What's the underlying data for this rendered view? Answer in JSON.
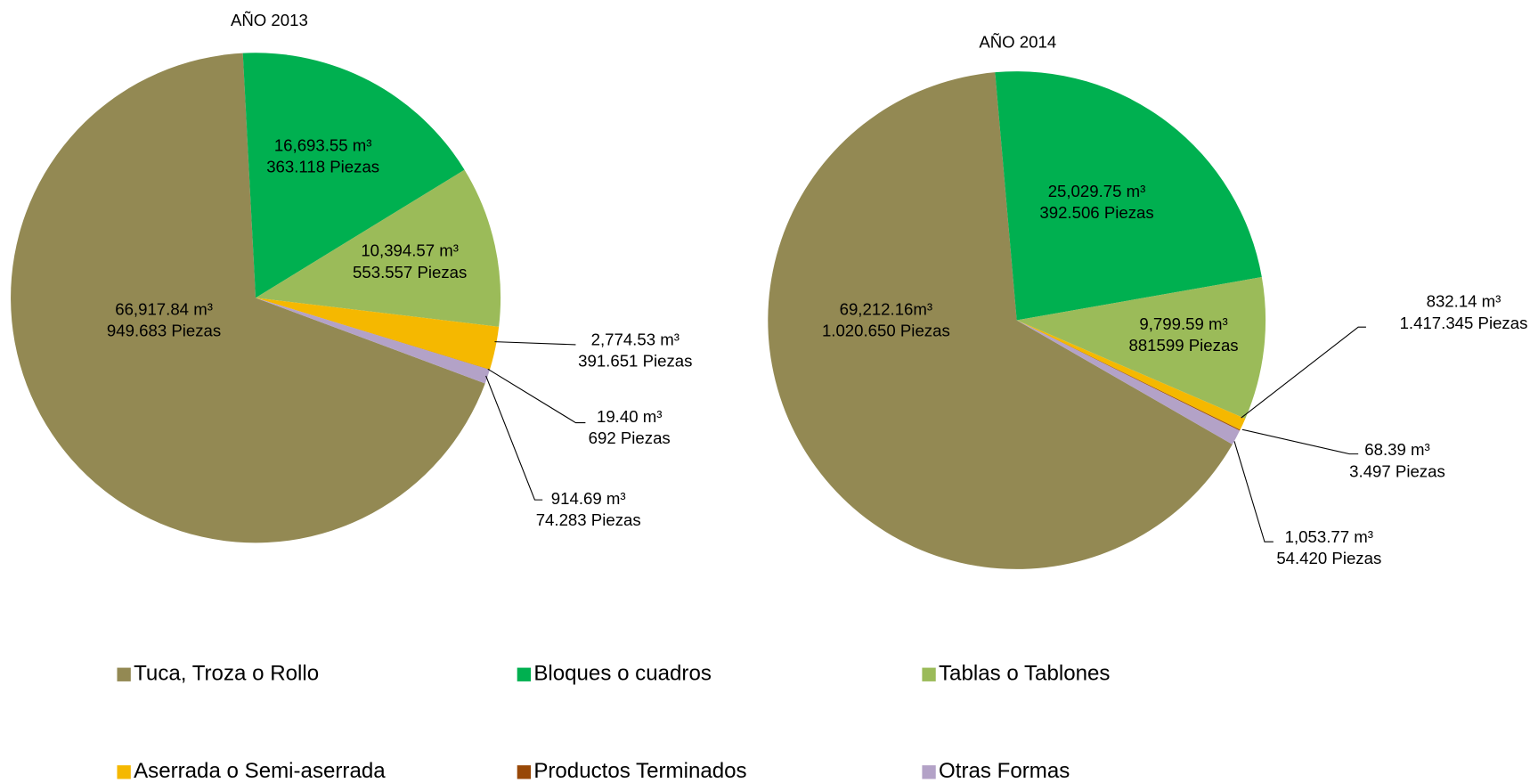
{
  "legend": {
    "labels": [
      "Tuca, Troza o Rollo",
      "Bloques o cuadros",
      "Tablas o Tablones",
      "Aserrada o Semi-aserrada",
      "Productos Terminados",
      "Otras Formas"
    ],
    "colors": [
      "#938953",
      "#00b050",
      "#9bbb59",
      "#f5b800",
      "#984807",
      "#b3a2c7"
    ]
  },
  "chart_data": [
    {
      "type": "pie",
      "title": "AÑO 2013",
      "values": [
        66917.84,
        16693.55,
        10394.57,
        2774.53,
        19.4,
        914.69
      ],
      "value_labels": [
        "66,917.84 m³",
        "16,693.55 m³",
        "10,394.57 m³",
        "2,774.53 m³",
        "19.40 m³",
        "914.69 m³"
      ],
      "pieces_labels": [
        "949.683 Piezas",
        "363.118 Piezas",
        "553.557 Piezas",
        "391.651 Piezas",
        "692 Piezas",
        "74.283 Piezas"
      ]
    },
    {
      "type": "pie",
      "title": "AÑO 2014",
      "values": [
        69212.16,
        25029.75,
        9799.59,
        832.14,
        68.39,
        1053.77
      ],
      "value_labels": [
        "69,212.16m³",
        "25,029.75 m³",
        "9,799.59 m³",
        "832.14 m³",
        "68.39 m³",
        "1,053.77 m³"
      ],
      "pieces_labels": [
        "1.020.650 Piezas",
        "392.506 Piezas",
        "881599 Piezas",
        "1.417.345 Piezas",
        "3.497 Piezas",
        "54.420 Piezas"
      ]
    }
  ]
}
